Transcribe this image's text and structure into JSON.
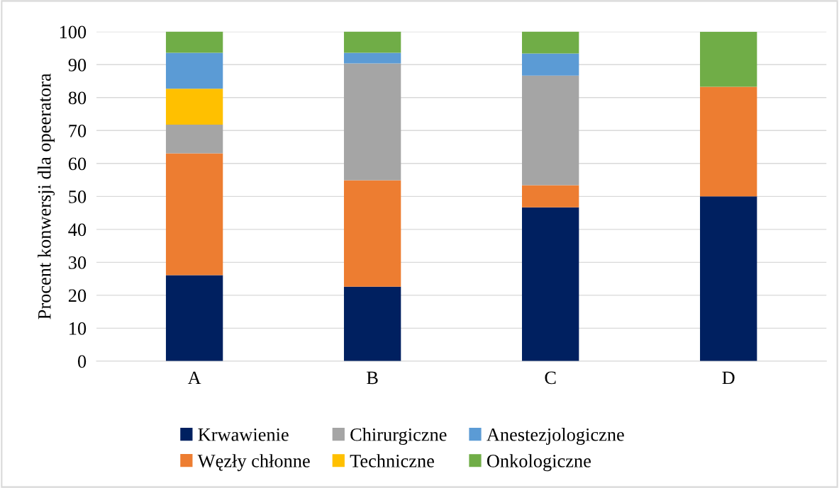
{
  "chart_data": {
    "type": "bar",
    "stacked": true,
    "ylabel": "Procent konwersji dla opeeratora",
    "categories": [
      "A",
      "B",
      "C",
      "D"
    ],
    "series": [
      {
        "name": "Krwawienie",
        "color": "#002060",
        "values": [
          26.1,
          22.6,
          46.7,
          50
        ]
      },
      {
        "name": "Węzły chłonne",
        "color": "#ed7d31",
        "values": [
          37.0,
          32.3,
          6.7,
          33.3
        ]
      },
      {
        "name": "Chirurgiczne",
        "color": "#a5a5a5",
        "values": [
          8.7,
          35.5,
          33.3,
          0
        ]
      },
      {
        "name": "Techniczne",
        "color": "#ffc000",
        "values": [
          10.9,
          0,
          0,
          0
        ]
      },
      {
        "name": "Anestezjologiczne",
        "color": "#5b9bd5",
        "values": [
          10.9,
          3.2,
          6.7,
          0
        ]
      },
      {
        "name": "Onkologiczne",
        "color": "#70ad47",
        "values": [
          6.5,
          6.5,
          6.7,
          16.7
        ]
      }
    ],
    "ylim": [
      0,
      100
    ],
    "yticks": [
      0,
      10,
      20,
      30,
      40,
      50,
      60,
      70,
      80,
      90,
      100
    ],
    "grid": "y",
    "legend": "bottom"
  }
}
